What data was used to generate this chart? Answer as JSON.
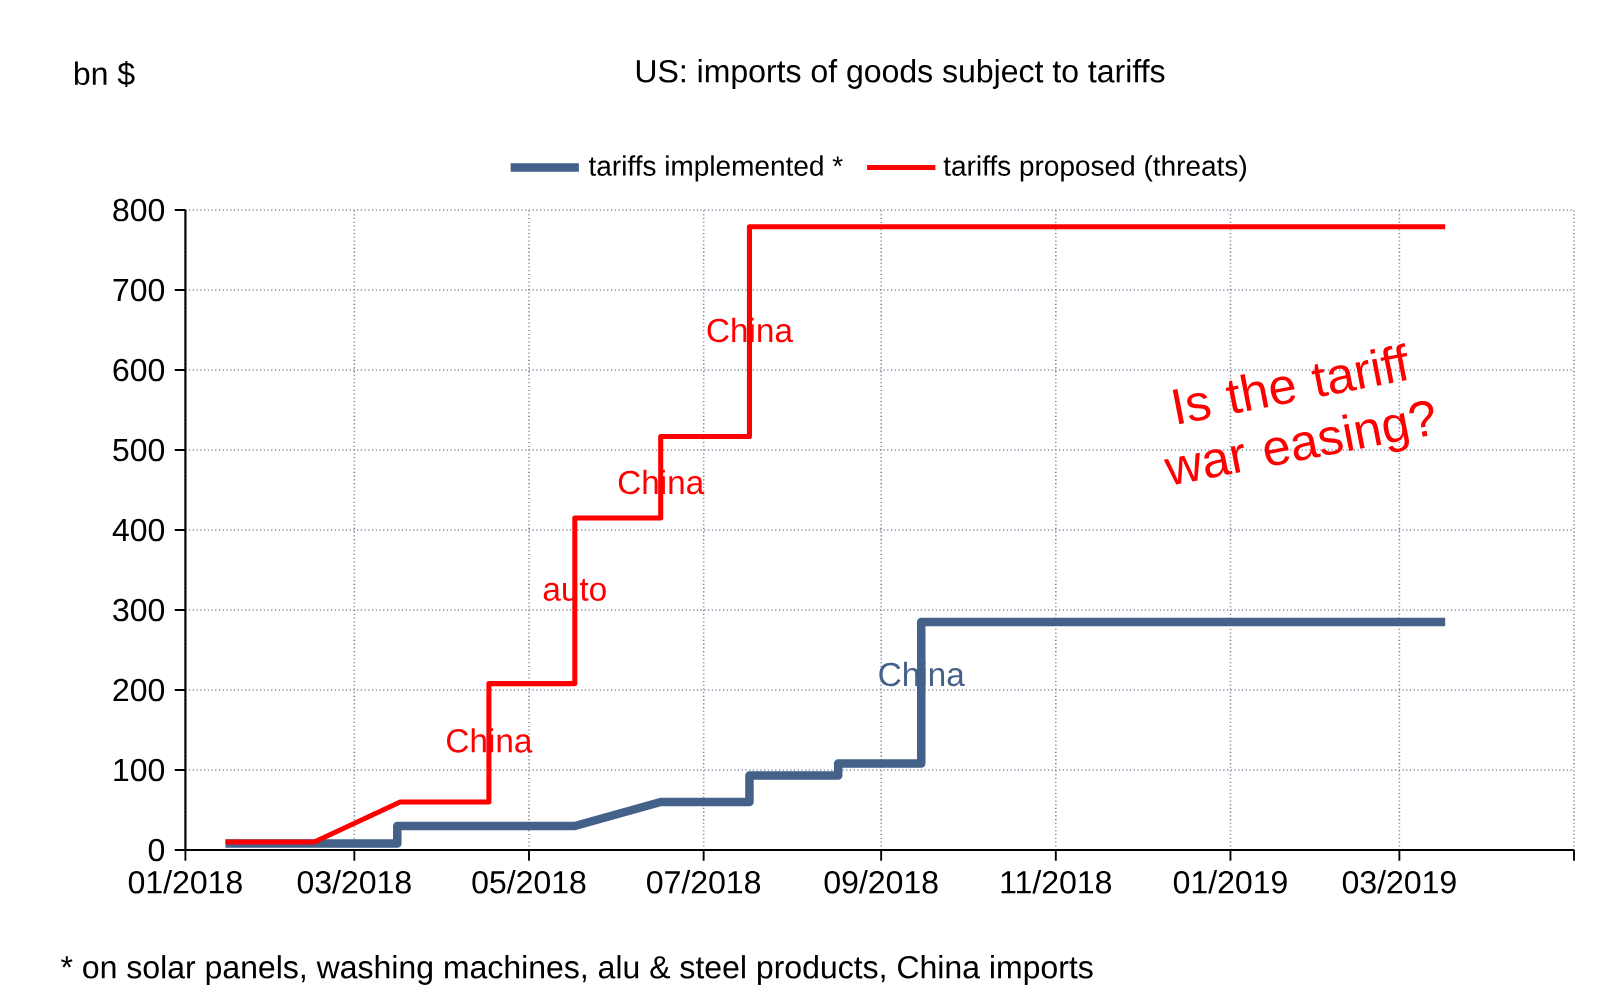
{
  "chart_data": {
    "type": "line",
    "title": "US: imports of goods subject to tariffs",
    "ylabel": "bn $",
    "xlim": [
      "2018-01-01",
      "2019-05-01"
    ],
    "xticks": [
      {
        "value": "2018-01-01",
        "label": "01/2018"
      },
      {
        "value": "2018-03-01",
        "label": "03/2018"
      },
      {
        "value": "2018-05-01",
        "label": "05/2018"
      },
      {
        "value": "2018-07-01",
        "label": "07/2018"
      },
      {
        "value": "2018-09-01",
        "label": "09/2018"
      },
      {
        "value": "2018-11-01",
        "label": "11/2018"
      },
      {
        "value": "2019-01-01",
        "label": "01/2019"
      },
      {
        "value": "2019-03-01",
        "label": "03/2019"
      },
      {
        "value": "2019-05-01",
        "label": null
      }
    ],
    "ylim": [
      0,
      800
    ],
    "yticks": [
      0,
      100,
      200,
      300,
      400,
      500,
      600,
      700,
      800
    ],
    "grid": true,
    "legend": "top",
    "series": [
      {
        "name": "tariffs implemented *",
        "color": "#44618a",
        "x": [
          "2018-01-15",
          "2018-03-16",
          "2018-03-16",
          "2018-05-17",
          "2018-06-16",
          "2018-07-17",
          "2018-07-17",
          "2018-08-17",
          "2018-08-17",
          "2018-09-15",
          "2018-09-15",
          "2019-03-17"
        ],
        "values": [
          8,
          8,
          30,
          30,
          60,
          60,
          93,
          93,
          108,
          108,
          285,
          285
        ]
      },
      {
        "name": "tariffs proposed (threats)",
        "color": "#ff0000",
        "x": [
          "2018-01-15",
          "2018-02-15",
          "2018-03-17",
          "2018-04-17",
          "2018-04-17",
          "2018-05-17",
          "2018-05-17",
          "2018-06-16",
          "2018-06-16",
          "2018-07-17",
          "2018-07-17",
          "2019-03-17"
        ],
        "values": [
          10,
          10,
          60,
          60,
          208,
          208,
          415,
          415,
          517,
          517,
          779,
          779
        ]
      }
    ],
    "annotations": [
      {
        "text": "China",
        "x": "2018-04-17",
        "y": 137
      },
      {
        "text": "auto",
        "x": "2018-05-17",
        "y": 325
      },
      {
        "text": "China",
        "x": "2018-06-16",
        "y": 460
      },
      {
        "text": "China",
        "x": "2018-07-17",
        "y": 650
      },
      {
        "text": "China",
        "x": "2018-09-15",
        "y": 220
      },
      "Is the tariff war easing?",
      "* on solar panels, washing machines, alu & steel products, China imports"
    ]
  }
}
